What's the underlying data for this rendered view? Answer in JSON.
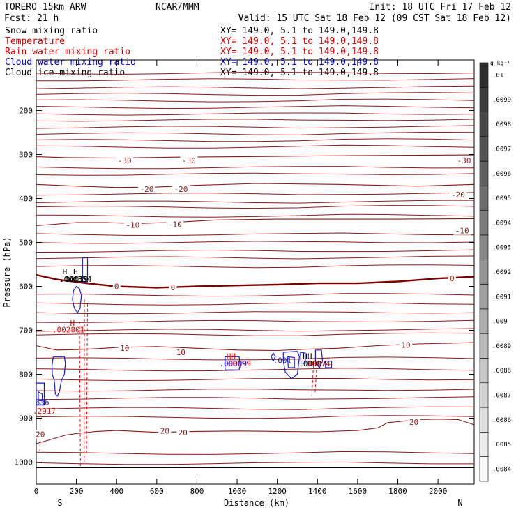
{
  "header": {
    "model": "TORERO   15km ARW",
    "center": "NCAR/MMM",
    "init": "Init: 18 UTC Fri 17 Feb 12",
    "fcst": "Fcst:   21 h",
    "valid": "Valid: 15 UTC Sat 18 Feb 12 (09 CST Sat 18 Feb 12)"
  },
  "legend": [
    {
      "name": "Snow mixing ratio",
      "xy": "XY= 149.0,  5.1 to 149.0,149.8",
      "color": "#000000"
    },
    {
      "name": "Temperature",
      "xy": "XY= 149.0,  5.1 to 149.0,149.8",
      "color": "#cc0000"
    },
    {
      "name": "Rain water mixing ratio",
      "xy": "XY= 149.0,  5.1 to 149.0,149.8",
      "color": "#cc0000"
    },
    {
      "name": "Cloud water mixing ratio",
      "xy": "XY= 149.0,  5.1 to 149.0,149.8",
      "color": "#0000cc"
    },
    {
      "name": "Cloud ice mixing ratio",
      "xy": "XY= 149.0,  5.1 to 149.0,149.8",
      "color": "#000000"
    }
  ],
  "colors": {
    "temperature": "#8b1a1a",
    "freezing": "#7a0000",
    "cloud_water": "#1a1acc",
    "rain": "#dd1111",
    "axis": "#000000"
  },
  "chart_data": {
    "type": "line",
    "title": "Vertical cross section",
    "xlabel": "Distance (km)",
    "ylabel": "Pressure (hPa)",
    "xlim": [
      0,
      2180
    ],
    "ylim": [
      1050,
      85
    ],
    "x_ticks": [
      0,
      200,
      400,
      600,
      800,
      1000,
      1200,
      1400,
      1600,
      1800,
      2000
    ],
    "y_ticks": [
      200,
      300,
      400,
      500,
      600,
      700,
      800,
      900,
      1000
    ],
    "y_tick_labels": [
      "200",
      "300",
      "400",
      "500",
      "600",
      "700",
      "800",
      "900",
      "1000"
    ],
    "x_tick_labels": [
      "0",
      "200",
      "400",
      "600",
      "800",
      "1000",
      "1200",
      "1400",
      "1600",
      "1800",
      "2000"
    ],
    "x_end_labels": {
      "left": "S",
      "right": "N"
    },
    "ground_pressure": 1012,
    "isotherms": [
      {
        "label": "-30",
        "points": [
          [
            0,
            305
          ],
          [
            150,
            307
          ],
          [
            400,
            308
          ],
          [
            700,
            306
          ],
          [
            1000,
            305
          ],
          [
            1400,
            303
          ],
          [
            1800,
            302
          ],
          [
            2180,
            301
          ]
        ]
      },
      {
        "label": "-20",
        "points": [
          [
            0,
            368
          ],
          [
            200,
            372
          ],
          [
            400,
            375
          ],
          [
            600,
            374
          ],
          [
            800,
            370
          ],
          [
            1100,
            366
          ],
          [
            1500,
            368
          ],
          [
            1900,
            372
          ],
          [
            2180,
            368
          ]
        ]
      },
      {
        "label": "-10",
        "points": [
          [
            0,
            462
          ],
          [
            200,
            455
          ],
          [
            350,
            455
          ],
          [
            500,
            457
          ],
          [
            700,
            454
          ],
          [
            900,
            449
          ],
          [
            1200,
            447
          ],
          [
            1500,
            447
          ],
          [
            1800,
            447
          ],
          [
            2180,
            446
          ]
        ]
      },
      {
        "label": "0",
        "points": [
          [
            0,
            574
          ],
          [
            100,
            584
          ],
          [
            250,
            593
          ],
          [
            400,
            600
          ],
          [
            600,
            603
          ],
          [
            800,
            600
          ],
          [
            1000,
            598
          ],
          [
            1200,
            596
          ],
          [
            1400,
            593
          ],
          [
            1600,
            593
          ],
          [
            1800,
            589
          ],
          [
            2000,
            582
          ],
          [
            2180,
            578
          ]
        ]
      },
      {
        "label": "10",
        "points": [
          [
            0,
            735
          ],
          [
            100,
            745
          ],
          [
            200,
            744
          ],
          [
            300,
            742
          ],
          [
            400,
            739
          ],
          [
            600,
            737
          ],
          [
            800,
            741
          ],
          [
            1000,
            745
          ],
          [
            1200,
            746
          ],
          [
            1350,
            743
          ],
          [
            1500,
            741
          ],
          [
            1700,
            735
          ],
          [
            1900,
            731
          ],
          [
            2180,
            728
          ]
        ]
      },
      {
        "label": "20",
        "points": [
          [
            0,
            958
          ],
          [
            150,
            938
          ],
          [
            200,
            935
          ],
          [
            300,
            930
          ],
          [
            400,
            928
          ],
          [
            600,
            932
          ],
          [
            800,
            930
          ],
          [
            1000,
            929
          ],
          [
            1200,
            930
          ],
          [
            1400,
            931
          ],
          [
            1600,
            928
          ],
          [
            1700,
            922
          ],
          [
            1750,
            910
          ],
          [
            1800,
            908
          ],
          [
            1900,
            903
          ],
          [
            2000,
            902
          ],
          [
            2100,
            903
          ],
          [
            2180,
            915
          ]
        ]
      }
    ],
    "isotherm_labels": [
      {
        "text": "-30",
        "x": 440,
        "p": 315
      },
      {
        "text": "-30",
        "x": 760,
        "p": 315
      },
      {
        "text": "-30",
        "x": 2130,
        "p": 315
      },
      {
        "text": "-20",
        "x": 550,
        "p": 380
      },
      {
        "text": "-20",
        "x": 720,
        "p": 380
      },
      {
        "text": "-20",
        "x": 2100,
        "p": 393
      },
      {
        "text": "-10",
        "x": 480,
        "p": 462
      },
      {
        "text": "-10",
        "x": 690,
        "p": 460
      },
      {
        "text": "-10",
        "x": 2120,
        "p": 475
      },
      {
        "text": "0",
        "x": 400,
        "p": 602
      },
      {
        "text": "0",
        "x": 680,
        "p": 604
      },
      {
        "text": "0",
        "x": 2070,
        "p": 583
      },
      {
        "text": "10",
        "x": 440,
        "p": 742
      },
      {
        "text": "10",
        "x": 720,
        "p": 752
      },
      {
        "text": "10",
        "x": 1840,
        "p": 735
      },
      {
        "text": "20",
        "x": 20,
        "p": 938
      },
      {
        "text": "20",
        "x": 640,
        "p": 930
      },
      {
        "text": "20",
        "x": 730,
        "p": 934
      },
      {
        "text": "20",
        "x": 1880,
        "p": 910
      }
    ],
    "extra_isotherm_levels": [
      115,
      130,
      148,
      163,
      178,
      193,
      208,
      222,
      238,
      253,
      268,
      283,
      330,
      345,
      390,
      408,
      420,
      440,
      482,
      500,
      520,
      535,
      555,
      620,
      640,
      660,
      680,
      700,
      710,
      765,
      790,
      812,
      836,
      855,
      878,
      898,
      980,
      1003
    ],
    "cloud_contours": [
      [
        [
          230,
          535
        ],
        [
          255,
          535
        ],
        [
          255,
          590
        ],
        [
          230,
          590
        ],
        [
          230,
          535
        ]
      ],
      [
        [
          185,
          610
        ],
        [
          200,
          600
        ],
        [
          215,
          605
        ],
        [
          225,
          620
        ],
        [
          218,
          650
        ],
        [
          205,
          660
        ],
        [
          190,
          650
        ],
        [
          180,
          630
        ],
        [
          185,
          610
        ]
      ],
      [
        [
          85,
          760
        ],
        [
          140,
          760
        ],
        [
          145,
          775
        ],
        [
          140,
          800
        ],
        [
          125,
          815
        ],
        [
          115,
          840
        ],
        [
          105,
          850
        ],
        [
          95,
          845
        ],
        [
          90,
          815
        ],
        [
          80,
          800
        ],
        [
          78,
          780
        ],
        [
          85,
          760
        ]
      ],
      [
        [
          0,
          820
        ],
        [
          40,
          820
        ],
        [
          40,
          870
        ],
        [
          0,
          870
        ],
        [
          0,
          820
        ]
      ],
      [
        [
          10,
          840
        ],
        [
          30,
          845
        ],
        [
          30,
          860
        ],
        [
          10,
          860
        ],
        [
          10,
          840
        ]
      ],
      [
        [
          940,
          760
        ],
        [
          1010,
          760
        ],
        [
          1015,
          780
        ],
        [
          1010,
          790
        ],
        [
          940,
          790
        ],
        [
          940,
          760
        ]
      ],
      [
        [
          1230,
          750
        ],
        [
          1300,
          748
        ],
        [
          1310,
          760
        ],
        [
          1300,
          800
        ],
        [
          1270,
          810
        ],
        [
          1240,
          795
        ],
        [
          1230,
          770
        ],
        [
          1230,
          750
        ]
      ],
      [
        [
          1250,
          760
        ],
        [
          1285,
          762
        ],
        [
          1285,
          785
        ],
        [
          1255,
          785
        ],
        [
          1250,
          760
        ]
      ],
      [
        [
          1390,
          745
        ],
        [
          1420,
          745
        ],
        [
          1425,
          770
        ],
        [
          1410,
          785
        ],
        [
          1390,
          775
        ],
        [
          1390,
          745
        ]
      ],
      [
        [
          1315,
          750
        ],
        [
          1340,
          752
        ],
        [
          1340,
          775
        ],
        [
          1318,
          775
        ],
        [
          1315,
          750
        ]
      ],
      [
        [
          1170,
          760
        ],
        [
          1180,
          752
        ],
        [
          1190,
          760
        ],
        [
          1180,
          770
        ],
        [
          1170,
          760
        ]
      ],
      [
        [
          1440,
          770
        ],
        [
          1470,
          770
        ],
        [
          1470,
          785
        ],
        [
          1440,
          785
        ],
        [
          1440,
          770
        ]
      ]
    ],
    "rain_dashes": [
      [
        [
          215,
          680
        ],
        [
          220,
          1012
        ]
      ],
      [
        [
          240,
          630
        ],
        [
          238,
          1000
        ]
      ],
      [
        [
          255,
          640
        ],
        [
          250,
          980
        ]
      ],
      [
        [
          1380,
          780
        ],
        [
          1372,
          850
        ]
      ],
      [
        [
          1395,
          790
        ],
        [
          1388,
          845
        ]
      ],
      [
        [
          20,
          880
        ],
        [
          18,
          980
        ]
      ]
    ],
    "annotations": [
      {
        "text": "H",
        "x": 142,
        "p": 572,
        "color": "#000000"
      },
      {
        "text": "H",
        "x": 196,
        "p": 572,
        "color": "#000000"
      },
      {
        "text": ".000354",
        "x": 195,
        "p": 590,
        "color": "#000000"
      },
      {
        "text": ".00039",
        "x": 190,
        "p": 590,
        "color": "#000000"
      },
      {
        "text": "H",
        "x": 180,
        "p": 690,
        "color": "#dd1111"
      },
      {
        "text": ".002801",
        "x": 160,
        "p": 705,
        "color": "#dd1111"
      },
      {
        "text": "636",
        "x": 30,
        "p": 870,
        "color": "#1a1acc"
      },
      {
        "text": ".2917",
        "x": 40,
        "p": 890,
        "color": "#dd1111"
      },
      {
        "text": "HH",
        "x": 970,
        "p": 765,
        "color": "#dd1111"
      },
      {
        "text": ".00099",
        "x": 1000,
        "p": 782,
        "color": "#dd1111"
      },
      {
        "text": ".00009",
        "x": 980,
        "p": 782,
        "color": "#1a1acc"
      },
      {
        "text": "HH",
        "x": 1350,
        "p": 765,
        "color": "#000000"
      },
      {
        "text": ".001",
        "x": 1225,
        "p": 775,
        "color": "#1a1acc"
      },
      {
        "text": ".00087",
        "x": 1375,
        "p": 782,
        "color": "#000000"
      },
      {
        "text": ".00074",
        "x": 1395,
        "p": 782,
        "color": "#dd1111"
      }
    ]
  },
  "colorbar": {
    "unit": "g kg⁻¹",
    "labels": [
      ".01",
      ".0099",
      ".0098",
      ".0097",
      ".0096",
      ".0095",
      ".0094",
      ".0093",
      ".0092",
      ".0091",
      ".009",
      ".0089",
      ".0088",
      ".0087",
      ".0086",
      ".0085",
      ".0084"
    ]
  }
}
